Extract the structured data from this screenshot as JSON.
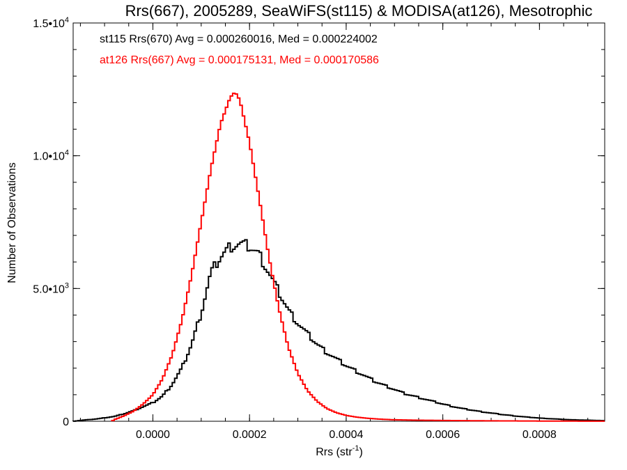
{
  "chart_data": {
    "type": "line",
    "title": "Rrs(667), 2005289, SeaWiFS(st115) & MODISA(at126), Mesotrophic",
    "xlabel": "Rrs (str",
    "xlabel_sup": "-1",
    "xlabel_end": ")",
    "ylabel": "Number of Observations",
    "xlim": [
      -0.000165,
      0.000935
    ],
    "ylim": [
      0,
      15000
    ],
    "x_ticks": [
      {
        "value": 0.0,
        "label": "0.0000"
      },
      {
        "value": 0.0002,
        "label": "0.0002"
      },
      {
        "value": 0.0004,
        "label": "0.0004"
      },
      {
        "value": 0.0006,
        "label": "0.0006"
      },
      {
        "value": 0.0008,
        "label": "0.0008"
      }
    ],
    "y_ticks": [
      {
        "value": 0,
        "mant": "0",
        "exp": ""
      },
      {
        "value": 5000,
        "mant": "5.0•10",
        "exp": "3"
      },
      {
        "value": 10000,
        "mant": "1.0•10",
        "exp": "4"
      },
      {
        "value": 15000,
        "mant": "1.5•10",
        "exp": "4"
      }
    ],
    "x_minor_step": 5e-05,
    "y_minor_step": 1000,
    "grid": false,
    "legend_position": "top-left",
    "series": [
      {
        "name": "st115 Rrs(670) Avg = 0.000260016, Med = 0.000224002",
        "color": "#000000",
        "x": [
          -0.000165,
          -0.00014,
          -0.00012,
          -0.0001,
          -8e-05,
          -6e-05,
          -4e-05,
          -2e-05,
          0.0,
          2e-05,
          4e-05,
          6e-05,
          8e-05,
          0.0001,
          0.00012,
          0.00014,
          0.00016,
          0.00018,
          0.0002,
          0.00022,
          0.00024,
          0.00026,
          0.00028,
          0.0003,
          0.00032,
          0.00034,
          0.00036,
          0.00038,
          0.0004,
          0.00042,
          0.00044,
          0.00046,
          0.00048,
          0.0005,
          0.00052,
          0.00054,
          0.00056,
          0.00058,
          0.0006,
          0.00062,
          0.00064,
          0.00066,
          0.00068,
          0.0007,
          0.00072,
          0.00074,
          0.00076,
          0.00078,
          0.0008,
          0.00082,
          0.00084,
          0.00086,
          0.00088,
          0.0009,
          0.00092,
          0.000935
        ],
        "y": [
          0,
          50,
          80,
          130,
          180,
          280,
          400,
          550,
          700,
          950,
          1400,
          2000,
          2900,
          4100,
          5600,
          6200,
          6600,
          6700,
          6600,
          6300,
          5600,
          4900,
          4200,
          3700,
          3300,
          2900,
          2600,
          2350,
          2100,
          1900,
          1700,
          1500,
          1350,
          1200,
          1050,
          950,
          850,
          750,
          650,
          560,
          480,
          420,
          360,
          310,
          260,
          220,
          180,
          150,
          120,
          100,
          80,
          60,
          50,
          40,
          30,
          20
        ]
      },
      {
        "name": "at126 Rrs(667) Avg = 0.000175131, Med = 0.000170586",
        "color": "#ff0000",
        "x": [
          -8.5e-05,
          -8e-05,
          -6e-05,
          -4e-05,
          -2e-05,
          0.0,
          2e-05,
          4e-05,
          6e-05,
          8e-05,
          0.0001,
          0.00012,
          0.00014,
          0.00016,
          0.00017,
          0.00018,
          0.0002,
          0.00022,
          0.00024,
          0.00026,
          0.00028,
          0.0003,
          0.00032,
          0.00034,
          0.00036,
          0.00038,
          0.0004,
          0.00042,
          0.00044,
          0.00046,
          0.00048,
          0.0005,
          0.00055,
          0.0006,
          0.00065,
          0.0007,
          0.00075,
          0.0008,
          0.00085,
          0.0009,
          0.000935
        ],
        "y": [
          0,
          60,
          200,
          380,
          650,
          1000,
          1600,
          2500,
          3800,
          5500,
          7500,
          9500,
          11200,
          12200,
          12400,
          12100,
          10500,
          8400,
          6200,
          4300,
          2800,
          1800,
          1150,
          750,
          480,
          320,
          220,
          160,
          120,
          90,
          70,
          55,
          40,
          30,
          22,
          16,
          12,
          8,
          6,
          4,
          3
        ]
      }
    ]
  }
}
